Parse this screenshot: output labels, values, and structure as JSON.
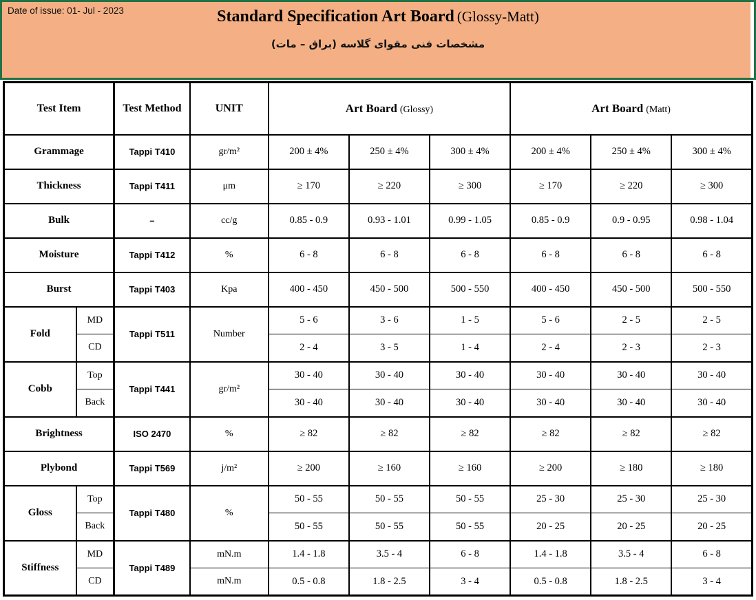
{
  "header": {
    "date_label": "Date of issue: 01- Jul - 2023",
    "title_main": "Standard Specification Art Board",
    "title_suffix": "(Glossy-Matt)",
    "subtitle_fa": "مشخصات فنی مقوای گلاسه (براق – مات)",
    "banner_bg_color": "#F4B084",
    "banner_border_color": "#217346"
  },
  "table": {
    "columns": {
      "test_item": "Test Item",
      "test_method": "Test Method",
      "unit": "UNIT",
      "glossy_main": "Art Board",
      "glossy_suffix": "(Glossy)",
      "matt_main": "Art Board",
      "matt_suffix": "(Matt)"
    },
    "rows": [
      {
        "item": "Grammage",
        "method": "Tappi T410",
        "unit": "gr/m²",
        "values": [
          "200 ± 4%",
          "250 ± 4%",
          "300 ± 4%",
          "200 ± 4%",
          "250 ± 4%",
          "300 ± 4%"
        ]
      },
      {
        "item": "Thickness",
        "method": "Tappi T411",
        "unit": "μm",
        "values": [
          "≥ 170",
          "≥ 220",
          "≥ 300",
          "≥ 170",
          "≥ 220",
          "≥ 300"
        ]
      },
      {
        "item": "Bulk",
        "method": "–",
        "unit": "cc/g",
        "values": [
          "0.85 - 0.9",
          "0.93 - 1.01",
          "0.99 - 1.05",
          "0.85 - 0.9",
          "0.9 - 0.95",
          "0.98 - 1.04"
        ]
      },
      {
        "item": "Moisture",
        "method": "Tappi T412",
        "unit": "%",
        "values": [
          "6 - 8",
          "6 - 8",
          "6 - 8",
          "6 - 8",
          "6 - 8",
          "6 - 8"
        ]
      },
      {
        "item": "Burst",
        "method": "Tappi T403",
        "unit": "Kpa",
        "values": [
          "400 - 450",
          "450 - 500",
          "500 - 550",
          "400 - 450",
          "450 - 500",
          "500 - 550"
        ]
      },
      {
        "item": "Fold",
        "method": "Tappi T511",
        "unit": "Number",
        "subs": [
          {
            "label": "MD",
            "values": [
              "5 - 6",
              "3 - 6",
              "1 - 5",
              "5 - 6",
              "2 - 5",
              "2 - 5"
            ]
          },
          {
            "label": "CD",
            "values": [
              "2 - 4",
              "3 - 5",
              "1 - 4",
              "2 - 4",
              "2 - 3",
              "2 - 3"
            ]
          }
        ]
      },
      {
        "item": "Cobb",
        "method": "Tappi T441",
        "unit": "gr/m²",
        "subs": [
          {
            "label": "Top",
            "values": [
              "30 - 40",
              "30 - 40",
              "30 - 40",
              "30 - 40",
              "30 - 40",
              "30 - 40"
            ]
          },
          {
            "label": "Back",
            "values": [
              "30 - 40",
              "30 - 40",
              "30 - 40",
              "30 - 40",
              "30 - 40",
              "30 - 40"
            ]
          }
        ]
      },
      {
        "item": "Brightness",
        "method": "ISO 2470",
        "unit": "%",
        "values": [
          "≥ 82",
          "≥ 82",
          "≥ 82",
          "≥ 82",
          "≥ 82",
          "≥ 82"
        ]
      },
      {
        "item": "Plybond",
        "method": "Tappi T569",
        "unit": "j/m²",
        "values": [
          "≥ 200",
          "≥ 160",
          "≥ 160",
          "≥ 200",
          "≥ 180",
          "≥ 180"
        ]
      },
      {
        "item": "Gloss",
        "method": "Tappi T480",
        "unit": "%",
        "subs": [
          {
            "label": "Top",
            "values": [
              "50 - 55",
              "50 - 55",
              "50 - 55",
              "25 - 30",
              "25 - 30",
              "25 - 30"
            ]
          },
          {
            "label": "Back",
            "values": [
              "50 - 55",
              "50 - 55",
              "50 - 55",
              "20 - 25",
              "20 - 25",
              "20 - 25"
            ]
          }
        ]
      },
      {
        "item": "Stiffness",
        "method": "Tappi T489",
        "unit_per_sub": true,
        "subs": [
          {
            "label": "MD",
            "unit": "mN.m",
            "values": [
              "1.4 - 1.8",
              "3.5 - 4",
              "6 - 8",
              "1.4 - 1.8",
              "3.5 - 4",
              "6 - 8"
            ]
          },
          {
            "label": "CD",
            "unit": "mN.m",
            "values": [
              "0.5 - 0.8",
              "1.8 - 2.5",
              "3 - 4",
              "0.5 - 0.8",
              "1.8 - 2.5",
              "3 - 4"
            ]
          }
        ]
      }
    ]
  }
}
